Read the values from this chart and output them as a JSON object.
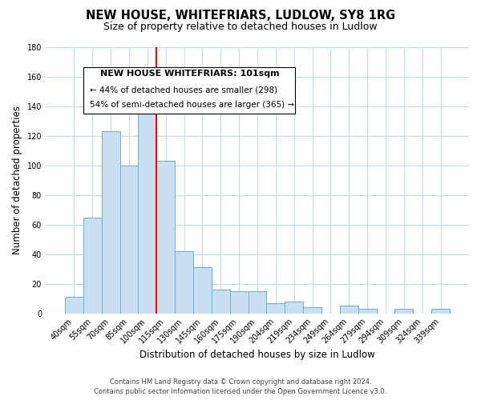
{
  "title": "NEW HOUSE, WHITEFRIARS, LUDLOW, SY8 1RG",
  "subtitle": "Size of property relative to detached houses in Ludlow",
  "xlabel": "Distribution of detached houses by size in Ludlow",
  "ylabel": "Number of detached properties",
  "bar_labels": [
    "40sqm",
    "55sqm",
    "70sqm",
    "85sqm",
    "100sqm",
    "115sqm",
    "130sqm",
    "145sqm",
    "160sqm",
    "175sqm",
    "190sqm",
    "204sqm",
    "219sqm",
    "234sqm",
    "249sqm",
    "264sqm",
    "279sqm",
    "294sqm",
    "309sqm",
    "324sqm",
    "339sqm"
  ],
  "bar_values": [
    11,
    65,
    123,
    100,
    135,
    103,
    42,
    31,
    16,
    15,
    15,
    7,
    8,
    4,
    0,
    5,
    3,
    0,
    3,
    0,
    3
  ],
  "bar_color": "#c8dff0",
  "bar_edge_color": "#6aaed6",
  "ylim": [
    0,
    180
  ],
  "yticks": [
    0,
    20,
    40,
    60,
    80,
    100,
    120,
    140,
    160,
    180
  ],
  "vline_color": "red",
  "vline_index": 5,
  "annotation_title": "NEW HOUSE WHITEFRIARS: 101sqm",
  "annotation_line1": "← 44% of detached houses are smaller (298)",
  "annotation_line2": "54% of semi-detached houses are larger (365) →",
  "footer_line1": "Contains HM Land Registry data © Crown copyright and database right 2024.",
  "footer_line2": "Contains public sector information licensed under the Open Government Licence v3.0.",
  "background_color": "#ffffff",
  "grid_color": "#c8dce8"
}
